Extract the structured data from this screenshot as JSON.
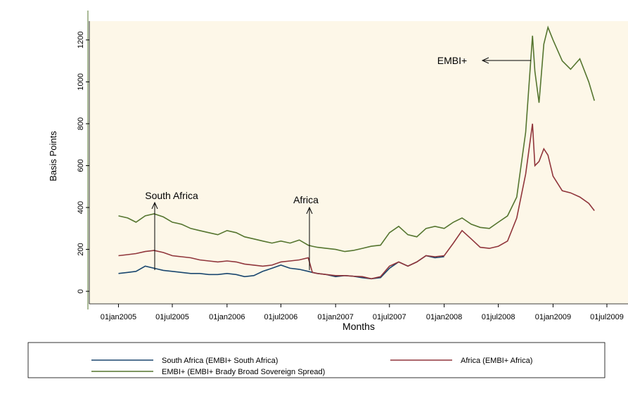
{
  "chart_data": {
    "type": "line",
    "x_label": "Months",
    "y_label": "Basis Points",
    "x": [
      "2005-01-01",
      "2005-02-01",
      "2005-03-01",
      "2005-04-01",
      "2005-05-01",
      "2005-06-01",
      "2005-07-01",
      "2005-08-01",
      "2005-09-01",
      "2005-10-01",
      "2005-11-01",
      "2005-12-01",
      "2006-01-01",
      "2006-02-01",
      "2006-03-01",
      "2006-04-01",
      "2006-05-01",
      "2006-06-01",
      "2006-07-01",
      "2006-08-01",
      "2006-09-01",
      "2006-10-01",
      "2006-10-15",
      "2006-11-01",
      "2006-12-01",
      "2007-01-01",
      "2007-02-01",
      "2007-03-01",
      "2007-04-01",
      "2007-05-01",
      "2007-06-01",
      "2007-07-01",
      "2007-08-01",
      "2007-09-01",
      "2007-10-01",
      "2007-11-01",
      "2007-12-01",
      "2008-01-01",
      "2008-02-01",
      "2008-03-01",
      "2008-04-01",
      "2008-05-01",
      "2008-06-01",
      "2008-07-01",
      "2008-08-01",
      "2008-09-01",
      "2008-10-01",
      "2008-10-24",
      "2008-11-01",
      "2008-11-15",
      "2008-12-01",
      "2008-12-15",
      "2009-01-01",
      "2009-02-01",
      "2009-03-01",
      "2009-04-01",
      "2009-05-01",
      "2009-05-20"
    ],
    "series": [
      {
        "name": "South Africa (EMBI+ South Africa)",
        "color": "#1a476f",
        "values": [
          85,
          90,
          95,
          120,
          110,
          100,
          95,
          90,
          85,
          85,
          80,
          80,
          85,
          80,
          70,
          75,
          95,
          110,
          125,
          110,
          105,
          95,
          90,
          85,
          80,
          70,
          75,
          72,
          65,
          60,
          65,
          110,
          140,
          120,
          140,
          170,
          160,
          165,
          null,
          null,
          null,
          null,
          null,
          null,
          null,
          null,
          null,
          null,
          null,
          null,
          null,
          null,
          null,
          null,
          null,
          null,
          null,
          null
        ]
      },
      {
        "name": "Africa (EMBI+ Africa)",
        "color": "#90353b",
        "values": [
          170,
          175,
          180,
          190,
          195,
          185,
          170,
          165,
          160,
          150,
          145,
          140,
          145,
          140,
          130,
          125,
          120,
          125,
          140,
          145,
          150,
          160,
          90,
          85,
          80,
          75,
          75,
          72,
          70,
          60,
          70,
          120,
          140,
          120,
          140,
          170,
          165,
          170,
          230,
          290,
          250,
          210,
          205,
          215,
          240,
          350,
          560,
          800,
          600,
          620,
          680,
          650,
          550,
          480,
          470,
          450,
          420,
          385
        ]
      },
      {
        "name": "EMBI+ (EMBI+ Brady Broad Sovereign Spread)",
        "color": "#55752f",
        "values": [
          360,
          350,
          330,
          360,
          370,
          355,
          330,
          320,
          300,
          290,
          280,
          270,
          290,
          280,
          260,
          250,
          240,
          230,
          240,
          230,
          245,
          220,
          215,
          210,
          205,
          200,
          190,
          195,
          205,
          215,
          220,
          280,
          310,
          270,
          260,
          300,
          310,
          300,
          330,
          350,
          320,
          305,
          300,
          330,
          360,
          450,
          760,
          1220,
          1050,
          900,
          1180,
          1260,
          1200,
          1100,
          1060,
          1110,
          1000,
          910
        ]
      }
    ],
    "annotations": [
      "South Africa",
      "Africa",
      "EMBI+"
    ],
    "xlim": [
      "2004-09-25",
      "2009-09-10"
    ],
    "xticks": [
      {
        "value": "2005-01-01",
        "label": "01jan2005"
      },
      {
        "value": "2005-07-01",
        "label": "01jul2005"
      },
      {
        "value": "2006-01-01",
        "label": "01jan2006"
      },
      {
        "value": "2006-07-01",
        "label": "01jul2006"
      },
      {
        "value": "2007-01-01",
        "label": "01jan2007"
      },
      {
        "value": "2007-07-01",
        "label": "01jul2007"
      },
      {
        "value": "2008-01-01",
        "label": "01jan2008"
      },
      {
        "value": "2008-07-01",
        "label": "01jul2008"
      },
      {
        "value": "2009-01-01",
        "label": "01jan2009"
      },
      {
        "value": "2009-07-01",
        "label": "01jul2009"
      }
    ],
    "ylim": [
      -60,
      1290
    ],
    "yticks": [
      0,
      200,
      400,
      600,
      800,
      1000,
      1200
    ],
    "grid": false
  }
}
